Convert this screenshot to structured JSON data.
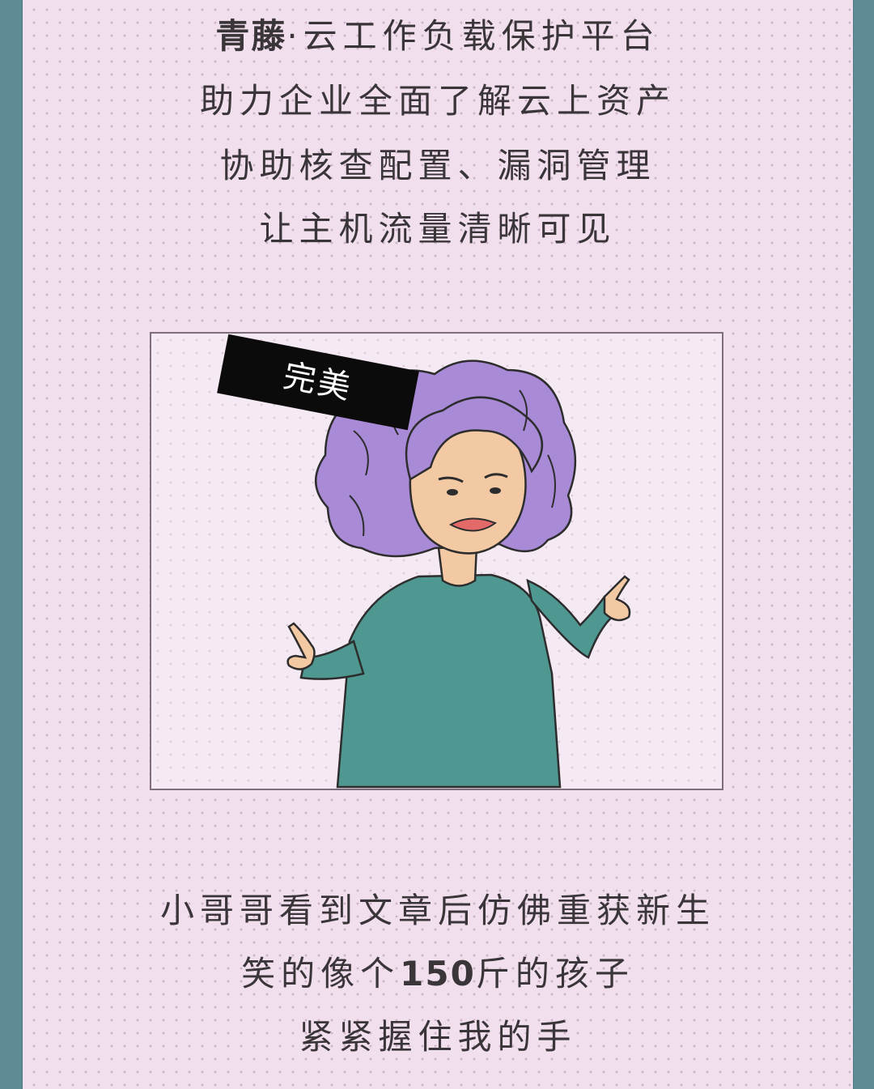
{
  "intro": {
    "line1_brand": "青藤",
    "line1_rest": "·云工作负载保护平台",
    "line2": "助力企业全面了解云上资产",
    "line3": "协助核查配置、漏洞管理",
    "line4": "让主机流量清晰可见"
  },
  "illustration": {
    "tag_label": "完美",
    "colors": {
      "hair": "#a98ad6",
      "skin": "#f3c9a4",
      "sweater": "#4f9791",
      "lips": "#e46a6a"
    }
  },
  "outro": {
    "line1": "小哥哥看到文章后仿佛重获新生",
    "line2_pre": "笑的像个",
    "line2_num": "150",
    "line2_post": "斤的孩子",
    "line3": "紧紧握住我的手"
  }
}
